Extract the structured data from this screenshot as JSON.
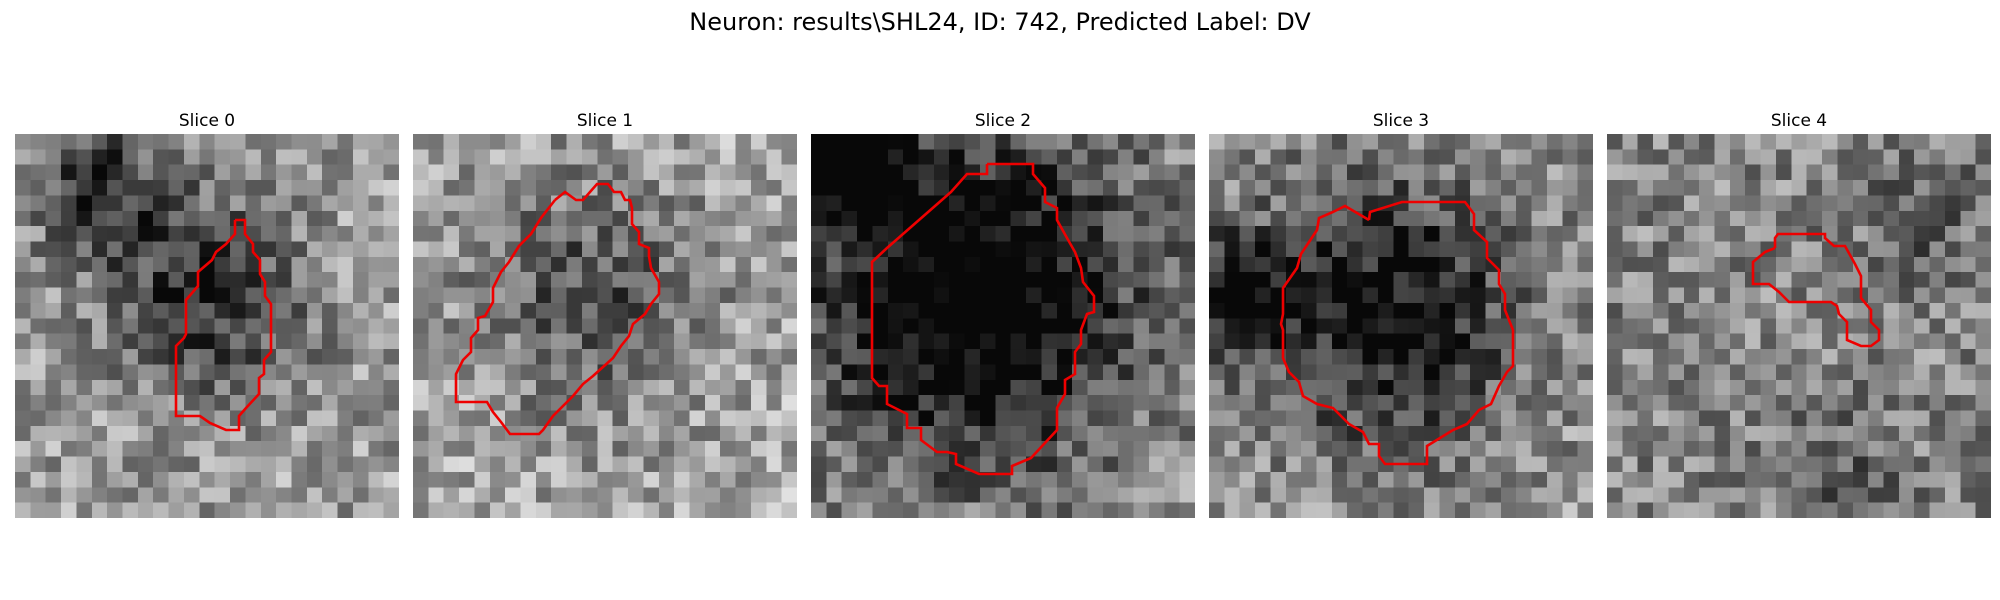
{
  "figure": {
    "title": "Neuron: results\\SHL24, ID: 742, Predicted Label: DV",
    "contour_color": "#ee0000",
    "grid_size": 25,
    "colormap": "gray"
  },
  "panels": [
    {
      "title": "Slice 0",
      "seed": 11,
      "base": 0.62,
      "blob_strength": 0.45
    },
    {
      "title": "Slice 1",
      "seed": 23,
      "base": 0.66,
      "blob_strength": 0.35
    },
    {
      "title": "Slice 2",
      "seed": 37,
      "base": 0.58,
      "blob_strength": 0.75
    },
    {
      "title": "Slice 3",
      "seed": 41,
      "base": 0.6,
      "blob_strength": 0.55
    },
    {
      "title": "Slice 4",
      "seed": 53,
      "base": 0.52,
      "blob_strength": 0.15
    }
  ]
}
